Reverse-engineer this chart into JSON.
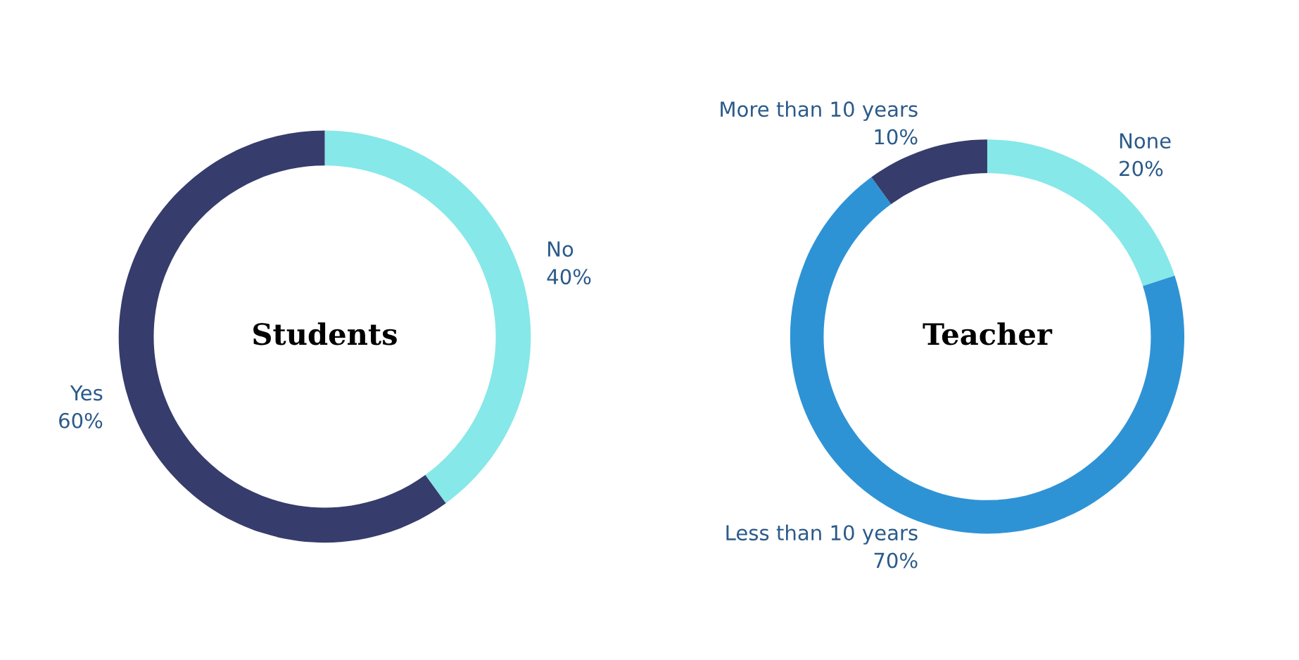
{
  "chart_data": [
    {
      "type": "donut",
      "title": "Students",
      "categories": [
        "No",
        "Yes"
      ],
      "values": [
        40,
        60
      ],
      "colors": [
        "#86e8e8",
        "#363c6b"
      ],
      "value_labels": [
        "40%",
        "60%"
      ],
      "legend": false
    },
    {
      "type": "donut",
      "title": "Teacher",
      "categories": [
        "None",
        "Less than 10 years",
        "More than 10 years"
      ],
      "values": [
        20,
        70,
        10
      ],
      "colors": [
        "#86e8e8",
        "#2e93d5",
        "#363c6b"
      ],
      "value_labels": [
        "20%",
        "70%",
        "10%"
      ],
      "legend": false
    }
  ]
}
